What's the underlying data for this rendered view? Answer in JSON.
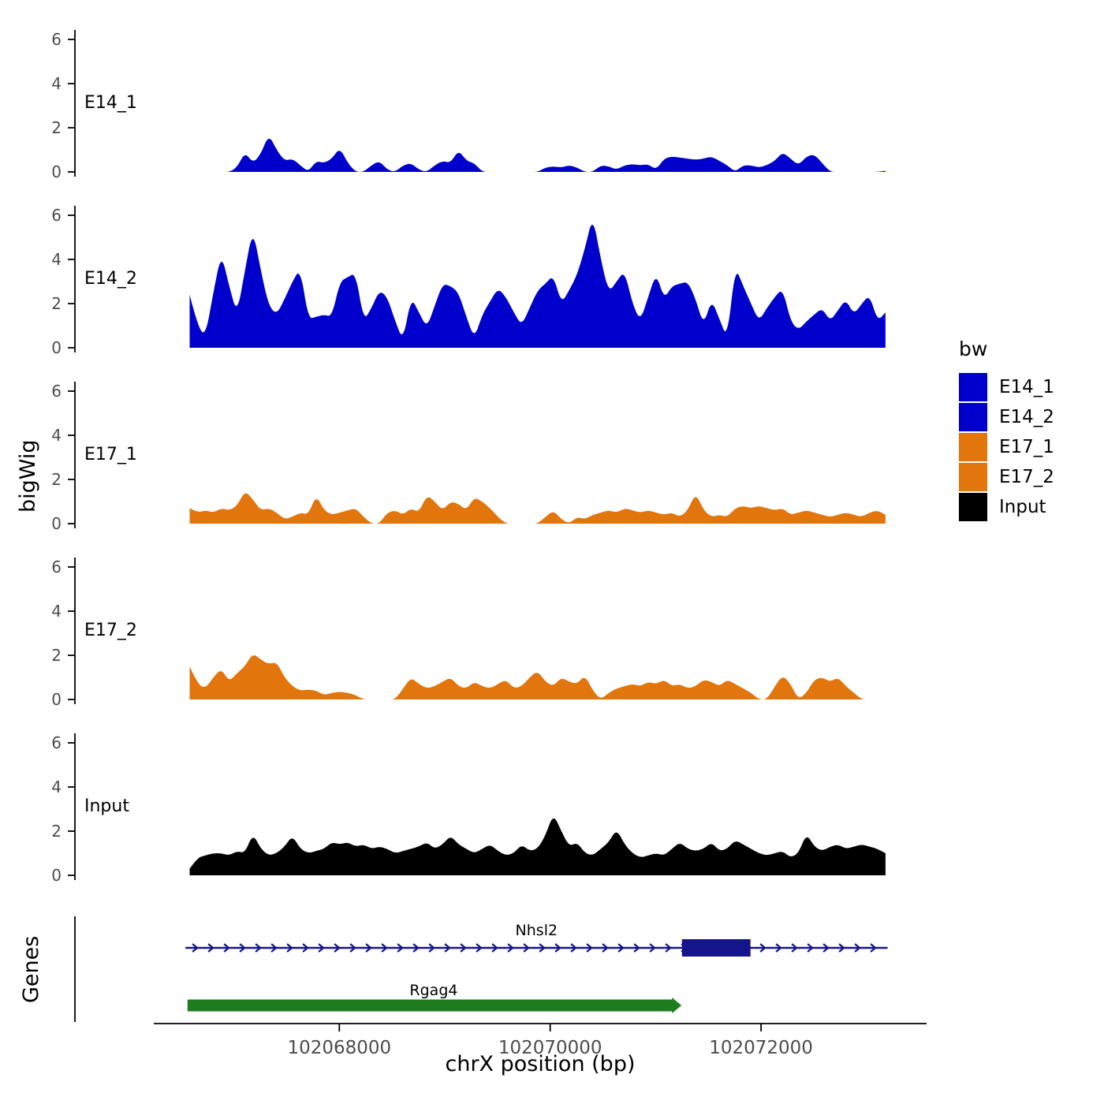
{
  "labels": {
    "y_title": "bigWig",
    "genes_title": "Genes",
    "x_title": "chrX position (bp)"
  },
  "legend": {
    "title": "bw",
    "items": [
      {
        "label": "E14_1",
        "color": "#0000CD"
      },
      {
        "label": "E14_2",
        "color": "#0000CD"
      },
      {
        "label": "E17_1",
        "color": "#E2750C"
      },
      {
        "label": "E17_2",
        "color": "#E2750C"
      },
      {
        "label": "Input",
        "color": "#000000"
      }
    ]
  },
  "chart_data": {
    "type": "area",
    "title": "",
    "xlabel": "chrX position (bp)",
    "ylabel": "bigWig",
    "grid": false,
    "legend_position": "right",
    "xlim": [
      102066240,
      102073570
    ],
    "ylim_per_track": [
      0,
      6
    ],
    "y_ticks": [
      0,
      2,
      4,
      6
    ],
    "x_ticks": [
      102068000,
      102070000,
      102072000
    ],
    "x_tick_labels": [
      "102068000",
      "102070000",
      "102072000"
    ],
    "x_start": 102066580,
    "x_step": 75,
    "series": [
      {
        "name": "E14_1",
        "color": "#0000CD",
        "values": [
          0,
          0,
          0,
          0,
          0,
          0,
          0.2,
          0.9,
          0.4,
          0.8,
          1.7,
          1.0,
          0.5,
          0.6,
          0.3,
          0,
          0.5,
          0.4,
          0.6,
          1.1,
          0.4,
          0,
          0,
          0.3,
          0.5,
          0.1,
          0,
          0.3,
          0.4,
          0.1,
          0,
          0.3,
          0.5,
          0.4,
          1.0,
          0.5,
          0.4,
          0,
          0,
          0,
          0,
          0,
          0,
          0,
          0,
          0.2,
          0.25,
          0.2,
          0.3,
          0.2,
          0,
          0,
          0.3,
          0.25,
          0.1,
          0.3,
          0.35,
          0.3,
          0.35,
          0.1,
          0.6,
          0.7,
          0.65,
          0.6,
          0.55,
          0.6,
          0.7,
          0.5,
          0.3,
          0,
          0.3,
          0.3,
          0.2,
          0.3,
          0.5,
          0.9,
          0.6,
          0.3,
          0.7,
          0.8,
          0.4,
          0,
          0,
          0,
          0,
          0,
          0,
          0,
          0.05
        ]
      },
      {
        "name": "E14_2",
        "color": "#0000CD",
        "values": [
          2.4,
          1.0,
          0.5,
          2.5,
          4.3,
          2.8,
          1.5,
          3.5,
          5.4,
          3.5,
          1.9,
          1.5,
          2.2,
          3.0,
          3.6,
          1.3,
          1.4,
          1.5,
          1.4,
          3.0,
          3.2,
          3.4,
          1.2,
          1.8,
          2.6,
          2.3,
          1.2,
          0.3,
          2.3,
          1.6,
          0.9,
          1.9,
          2.9,
          2.8,
          2.5,
          1.4,
          0.4,
          1.5,
          2.1,
          2.7,
          2.3,
          1.6,
          1.0,
          1.8,
          2.6,
          2.9,
          3.3,
          2.0,
          2.6,
          3.3,
          4.5,
          6.0,
          4.0,
          2.5,
          3.0,
          3.5,
          2.0,
          1.2,
          2.3,
          3.4,
          2.2,
          2.8,
          2.9,
          3.0,
          2.2,
          1.0,
          2.2,
          1.3,
          0.4,
          3.7,
          2.8,
          2.0,
          1.2,
          1.8,
          2.3,
          2.7,
          1.2,
          0.8,
          1.2,
          1.5,
          1.8,
          1.2,
          1.7,
          2.2,
          1.5,
          2.0,
          2.4,
          1.2,
          1.6
        ]
      },
      {
        "name": "E17_1",
        "color": "#E2750C",
        "values": [
          0.7,
          0.5,
          0.6,
          0.5,
          0.7,
          0.6,
          0.8,
          1.5,
          1.1,
          0.6,
          0.7,
          0.5,
          0.2,
          0.3,
          0.5,
          0.4,
          1.3,
          0.6,
          0.4,
          0.5,
          0.6,
          0.7,
          0.3,
          0,
          0,
          0.5,
          0.6,
          0.4,
          0.7,
          0.5,
          1.3,
          1.0,
          0.6,
          1.0,
          0.9,
          0.6,
          1.2,
          1.0,
          0.7,
          0.3,
          0,
          0,
          0,
          0,
          0,
          0.3,
          0.6,
          0.2,
          0,
          0.3,
          0.2,
          0.4,
          0.5,
          0.6,
          0.5,
          0.7,
          0.6,
          0.5,
          0.6,
          0.5,
          0.4,
          0.5,
          0.3,
          0.6,
          1.4,
          0.6,
          0.3,
          0.4,
          0.3,
          0.7,
          0.8,
          0.7,
          0.8,
          0.7,
          0.6,
          0.7,
          0.4,
          0.5,
          0.6,
          0.5,
          0.4,
          0.3,
          0.4,
          0.5,
          0.4,
          0.3,
          0.5,
          0.6,
          0.4
        ]
      },
      {
        "name": "E17_2",
        "color": "#E2750C",
        "values": [
          1.5,
          0.7,
          0.5,
          1.0,
          1.4,
          0.8,
          1.2,
          1.5,
          2.1,
          1.8,
          1.6,
          1.7,
          1.0,
          0.6,
          0.4,
          0.45,
          0.4,
          0.2,
          0.3,
          0.35,
          0.3,
          0.2,
          0,
          0,
          0,
          0,
          0,
          0.5,
          1.0,
          0.7,
          0.5,
          0.6,
          0.8,
          1.0,
          0.6,
          0.5,
          0.8,
          0.6,
          0.5,
          0.7,
          0.9,
          0.5,
          0.6,
          1.0,
          1.3,
          0.8,
          0.6,
          1.0,
          0.8,
          0.7,
          1.1,
          0.4,
          0,
          0.3,
          0.5,
          0.6,
          0.7,
          0.6,
          0.8,
          0.7,
          0.9,
          0.6,
          0.7,
          0.5,
          0.6,
          0.9,
          0.8,
          0.6,
          0.9,
          0.7,
          0.5,
          0.3,
          0,
          0,
          0.6,
          1.1,
          0.7,
          0,
          0.3,
          0.9,
          1.0,
          0.8,
          1.0,
          0.6,
          0.3,
          0,
          0,
          0,
          0
        ]
      },
      {
        "name": "Input",
        "color": "#000000",
        "values": [
          0.3,
          0.8,
          0.9,
          1.0,
          1.0,
          0.9,
          1.1,
          1.0,
          1.9,
          1.2,
          0.9,
          1.0,
          1.3,
          1.8,
          1.2,
          1.0,
          1.1,
          1.2,
          1.5,
          1.4,
          1.5,
          1.3,
          1.4,
          1.2,
          1.3,
          1.2,
          1.0,
          1.1,
          1.2,
          1.3,
          1.5,
          1.2,
          1.4,
          1.8,
          1.4,
          1.2,
          1.0,
          1.2,
          1.4,
          1.1,
          0.9,
          1.0,
          1.4,
          1.1,
          1.2,
          1.8,
          2.8,
          2.0,
          1.3,
          1.5,
          1.0,
          0.9,
          1.2,
          1.5,
          2.1,
          1.4,
          1.0,
          0.8,
          0.9,
          1.0,
          0.9,
          1.2,
          1.5,
          1.2,
          1.1,
          1.2,
          1.5,
          1.1,
          1.2,
          1.6,
          1.4,
          1.2,
          1.0,
          0.9,
          1.0,
          1.1,
          0.8,
          1.0,
          1.9,
          1.3,
          1.1,
          1.3,
          1.4,
          1.2,
          1.3,
          1.4,
          1.3,
          1.2,
          1.0
        ]
      }
    ],
    "genes": [
      {
        "name": "Nhsl2",
        "style": "transcript",
        "strand": "+",
        "start": 102066540,
        "end": 102073200,
        "exons": [
          {
            "start": 102071250,
            "end": 102071900
          }
        ],
        "color": "#15158B"
      },
      {
        "name": "Rgag4",
        "style": "box",
        "strand": "+",
        "start": 102066560,
        "end": 102071230,
        "color": "#1F7D1F"
      }
    ]
  }
}
